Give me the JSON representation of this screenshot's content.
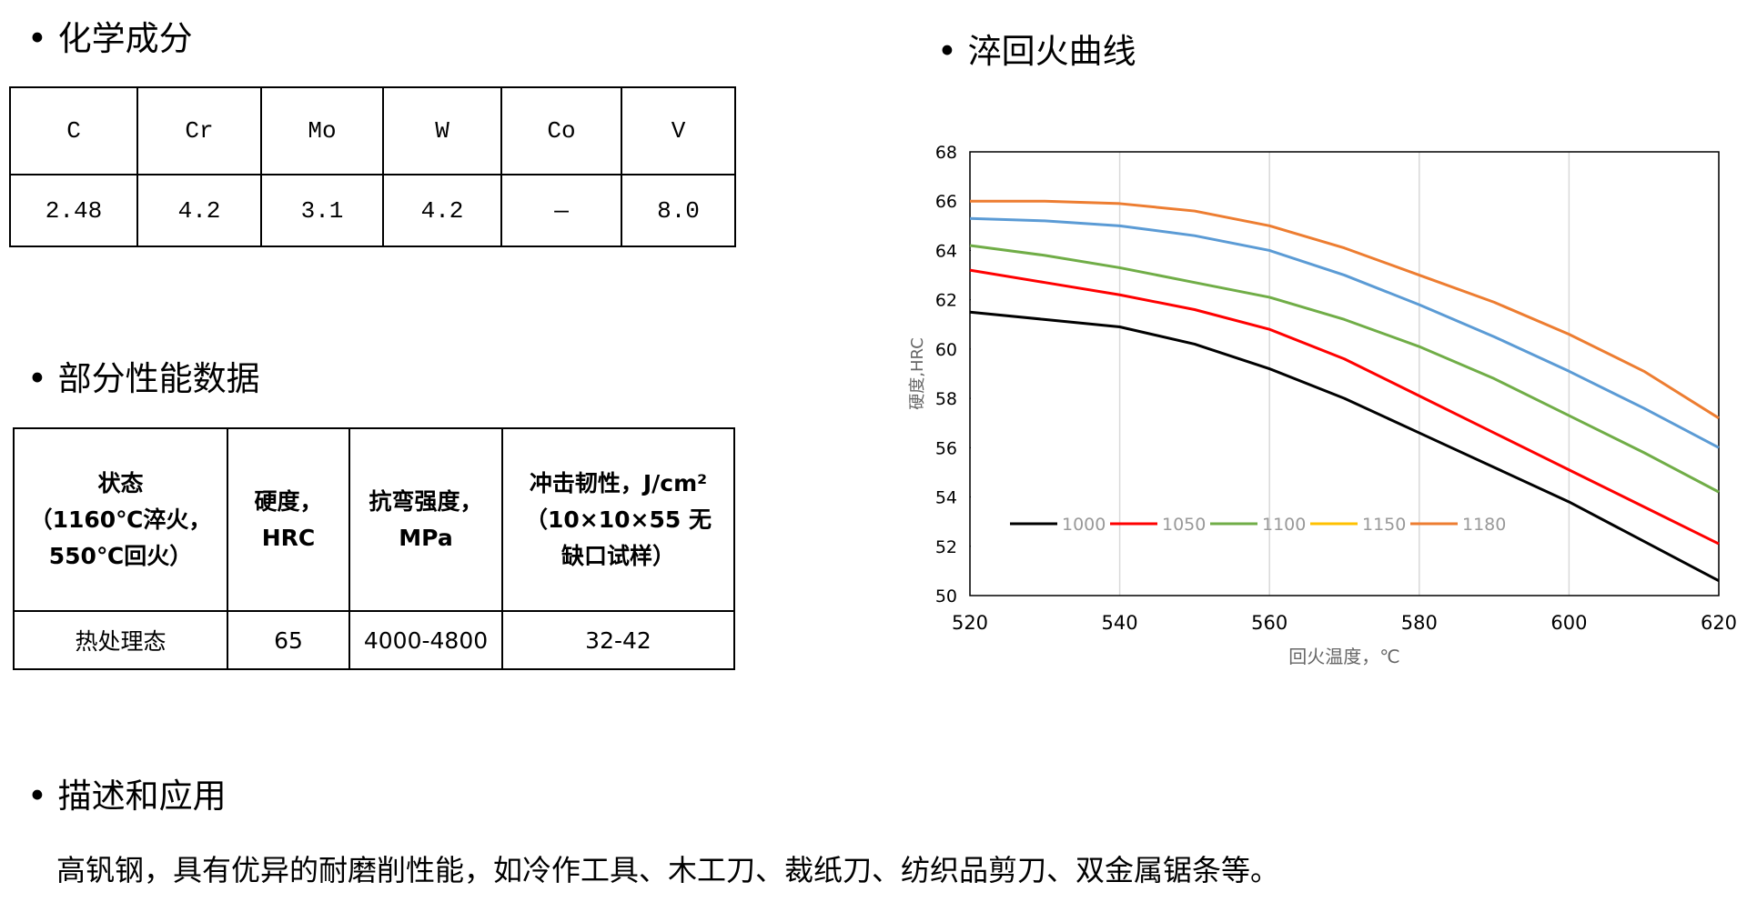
{
  "composition": {
    "heading": "化学成分",
    "header": [
      "C",
      "Cr",
      "Mo",
      "W",
      "Co",
      "V"
    ],
    "row": [
      "2.48",
      "4.2",
      "3.1",
      "4.2",
      "—",
      "8.0"
    ]
  },
  "properties": {
    "heading": "部分性能数据",
    "header": [
      [
        "状态",
        "（1160℃淬火，",
        "550℃回火）"
      ],
      [
        "硬度，",
        "HRC"
      ],
      [
        "抗弯强度，",
        "MPa"
      ],
      [
        "冲击韧性，J/cm²",
        "（10×10×55 无",
        "缺口试样）"
      ]
    ],
    "row": [
      "热处理态",
      "65",
      "4000-4800",
      "32-42"
    ]
  },
  "description": {
    "heading": "描述和应用",
    "text": "高钒钢，具有优异的耐磨削性能，如冷作工具、木工刀、裁纸刀、纺织品剪刀、双金属锯条等。"
  },
  "chart_data": {
    "type": "line",
    "title": "淬回火曲线",
    "x_label": "回火温度，℃",
    "y_label": "硬度,HRC",
    "x": [
      520,
      530,
      540,
      550,
      560,
      570,
      580,
      590,
      600,
      610,
      620
    ],
    "series": [
      {
        "name": "1000",
        "color": "#000000",
        "values": [
          61.5,
          61.2,
          60.9,
          60.2,
          59.2,
          58.0,
          56.6,
          55.2,
          53.8,
          52.2,
          50.6
        ]
      },
      {
        "name": "1050",
        "color": "#ff0000",
        "values": [
          63.2,
          62.7,
          62.2,
          61.6,
          60.8,
          59.6,
          58.1,
          56.6,
          55.1,
          53.6,
          52.1
        ]
      },
      {
        "name": "1100",
        "color": "#70ad47",
        "values": [
          64.2,
          63.8,
          63.3,
          62.7,
          62.1,
          61.2,
          60.1,
          58.8,
          57.3,
          55.8,
          54.2
        ]
      },
      {
        "name": "1150",
        "color": "#5b9bd5",
        "legend_color": "#ffc000",
        "values": [
          65.3,
          65.2,
          65.0,
          64.6,
          64.0,
          63.0,
          61.8,
          60.5,
          59.1,
          57.6,
          56.0
        ]
      },
      {
        "name": "1180",
        "color": "#ed7d31",
        "values": [
          66.0,
          66.0,
          65.9,
          65.6,
          65.0,
          64.1,
          63.0,
          61.9,
          60.6,
          59.1,
          57.2
        ]
      }
    ],
    "xlim": [
      520,
      620
    ],
    "xticks": [
      520,
      540,
      560,
      580,
      600,
      620
    ],
    "ylim": [
      50,
      68
    ],
    "yticks": [
      50,
      52,
      54,
      56,
      58,
      60,
      62,
      64,
      66,
      68
    ],
    "grid": "x",
    "legend": "lower left"
  }
}
